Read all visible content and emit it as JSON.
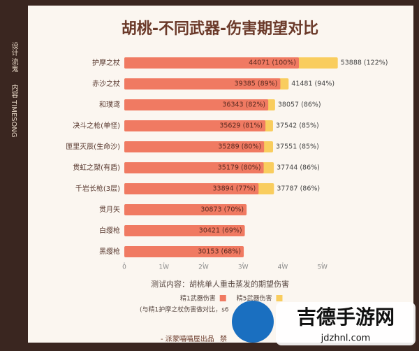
{
  "sidebar": {
    "design": "设计 流鬼",
    "content": "内容 TIMESONG"
  },
  "chart_data": {
    "type": "bar",
    "orientation": "horizontal",
    "title": "胡桃-不同武器-伤害期望对比",
    "categories": [
      "护摩之杖",
      "赤沙之杖",
      "和璞鸢",
      "决斗之枪(单怪)",
      "匣里灭辰(生命沙)",
      "贯虹之槊(有盾)",
      "千岩长枪(3层)",
      "贯月矢",
      "白缨枪",
      "黑缨枪"
    ],
    "series": [
      {
        "name": "精1武器伤害",
        "color": "#f07a62",
        "values": [
          44071,
          39385,
          36343,
          35629,
          35289,
          35179,
          33894,
          30873,
          30421,
          30153
        ],
        "value_labels": [
          "44071 (100%)",
          "39385 (89%)",
          "36343 (82%)",
          "35629 (81%)",
          "35289 (80%)",
          "35179 (80%)",
          "33894 (77%)",
          "30873 (70%)",
          "30421 (69%)",
          "30153 (68%)"
        ]
      },
      {
        "name": "精5武器伤害",
        "color": "#f9cd5e",
        "values": [
          53888,
          41481,
          38057,
          37542,
          37551,
          37744,
          37787,
          null,
          null,
          null
        ],
        "value_labels": [
          "53888 (122%)",
          "41481 (94%)",
          "38057 (86%)",
          "37542 (85%)",
          "37551 (85%)",
          "37744 (86%)",
          "37787 (86%)",
          null,
          null,
          null
        ]
      }
    ],
    "xlim": [
      0,
      55000
    ],
    "xticks": [
      0,
      {
        "value": 10000,
        "label": "1W"
      },
      {
        "value": 20000,
        "label": "2W"
      },
      {
        "value": 30000,
        "label": "3W"
      },
      {
        "value": 40000,
        "label": "4W"
      },
      {
        "value": 50000,
        "label": "5W"
      }
    ],
    "subtitle": "测试内容：胡桃单人重击蒸发的期望伤害",
    "note": "(与精1护摩之杖伤害做对比，s6",
    "legend": "bottom"
  },
  "footer": {
    "credit": "- 派蒙喵喵屋出品",
    "extra": "禁"
  },
  "watermark": {
    "name": "吉德手游网",
    "url": "jdzhnl.com"
  }
}
